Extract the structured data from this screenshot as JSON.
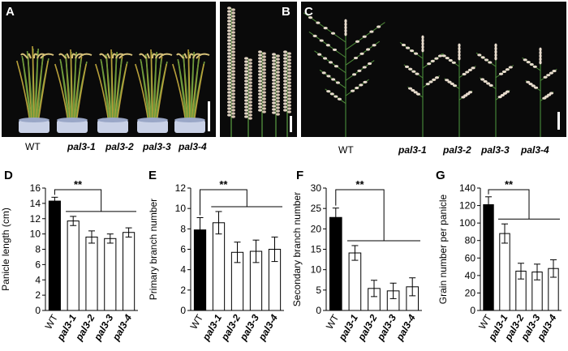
{
  "photos": {
    "panel_a": {
      "letter": "A",
      "labels": [
        "WT",
        "pal3-1",
        "pal3-2",
        "pal3-3",
        "pal3-4"
      ]
    },
    "panel_b": {
      "letter": "B"
    },
    "panel_c": {
      "letter": "C",
      "labels": [
        "WT",
        "pal3-1",
        "pal3-2",
        "pal3-3",
        "pal3-4"
      ]
    }
  },
  "colors": {
    "wt_bar": "#000000",
    "mutant_bar": "#ffffff",
    "photo_bg": "#0a0a0a"
  },
  "chart_data": [
    {
      "panel": "D",
      "type": "bar",
      "categories": [
        "WT",
        "pal3-1",
        "pal3-2",
        "pal3-3",
        "pal3-4"
      ],
      "values": [
        14.3,
        11.7,
        9.6,
        9.4,
        10.2
      ],
      "errors": [
        0.5,
        0.6,
        0.8,
        0.6,
        0.6
      ],
      "ylabel": "Panicle length (cm)",
      "ylim": [
        0,
        16
      ],
      "yticks": [
        0,
        2,
        4,
        6,
        8,
        10,
        12,
        14,
        16
      ],
      "significance": "**"
    },
    {
      "panel": "E",
      "type": "bar",
      "categories": [
        "WT",
        "pal3-1",
        "pal3-2",
        "pal3-3",
        "pal3-4"
      ],
      "values": [
        7.9,
        8.6,
        5.7,
        5.8,
        6.0
      ],
      "errors": [
        1.2,
        1.1,
        1.0,
        1.1,
        1.2
      ],
      "ylabel": "Primary branch number",
      "ylim": [
        0,
        12
      ],
      "yticks": [
        0,
        2,
        4,
        6,
        8,
        10,
        12
      ],
      "significance": "**"
    },
    {
      "panel": "F",
      "type": "bar",
      "categories": [
        "WT",
        "pal3-1",
        "pal3-2",
        "pal3-3",
        "pal3-4"
      ],
      "values": [
        22.8,
        14.1,
        5.4,
        4.8,
        5.8
      ],
      "errors": [
        2.3,
        1.8,
        2.0,
        1.9,
        2.2
      ],
      "ylabel": "Secondary branch number",
      "ylim": [
        0,
        30
      ],
      "yticks": [
        0,
        5,
        10,
        15,
        20,
        25,
        30
      ],
      "significance": "**"
    },
    {
      "panel": "G",
      "type": "bar",
      "categories": [
        "WT",
        "pal3-1",
        "pal3-2",
        "pal3-3",
        "pal3-4"
      ],
      "values": [
        121,
        88,
        45,
        44,
        48
      ],
      "errors": [
        9,
        11,
        9,
        9,
        10
      ],
      "ylabel": "Grain number per panicle",
      "ylim": [
        0,
        140
      ],
      "yticks": [
        0,
        20,
        40,
        60,
        80,
        100,
        120,
        140
      ],
      "significance": "**"
    }
  ]
}
